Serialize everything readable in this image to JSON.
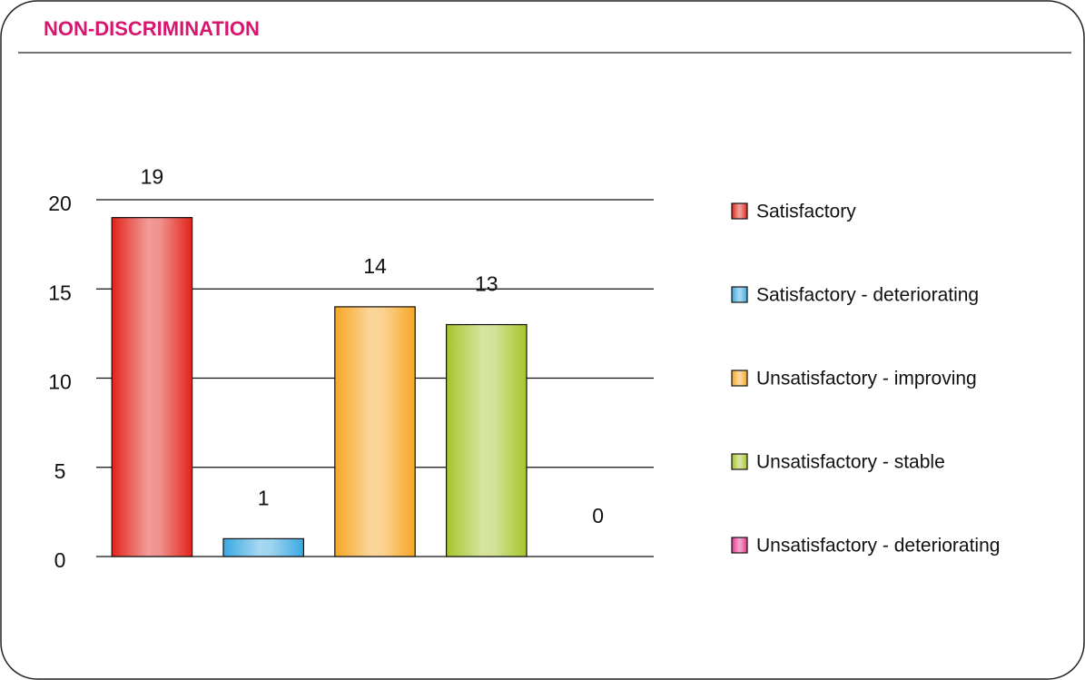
{
  "chart_data": {
    "type": "bar",
    "title": "NON-DISCRIMINATION",
    "categories": [
      "Satisfactory",
      "Satisfactory - deteriorating",
      "Unsatisfactory - improving",
      "Unsatisfactory - stable",
      "Unsatisfactory - deteriorating"
    ],
    "values": [
      19,
      1,
      14,
      13,
      0
    ],
    "colors": [
      "#e2231a",
      "#3aa8e1",
      "#f6a623",
      "#a6c52c",
      "#e5338b"
    ],
    "ylim": [
      0,
      20
    ],
    "yticks": [
      0,
      5,
      10,
      15,
      20
    ],
    "grid": true,
    "legend": "right"
  }
}
